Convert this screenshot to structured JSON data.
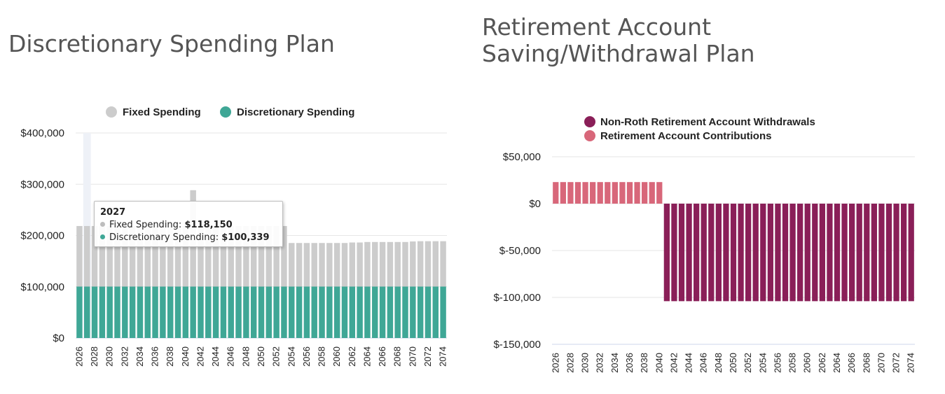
{
  "colors": {
    "fixed": "#cccccc",
    "discretionary": "#3fa796",
    "withdrawals": "#8a1f58",
    "contributions": "#d8677a",
    "grid": "#e6e6e6",
    "axis": "#ccd6eb"
  },
  "left": {
    "title": "Discretionary Spending Plan",
    "tooltip": {
      "year": "2027",
      "rows": [
        {
          "label": "Fixed Spending:",
          "value": "$118,150",
          "color": "#bdbdbd"
        },
        {
          "label": "Discretionary Spending:",
          "value": "$100,339",
          "color": "#3fa796"
        }
      ]
    }
  },
  "right": {
    "title": "Retirement Account Saving/Withdrawal Plan"
  },
  "chart_data": [
    {
      "type": "bar",
      "stacked": true,
      "title": "Discretionary Spending Plan",
      "x": [
        2026,
        2027,
        2028,
        2029,
        2030,
        2031,
        2032,
        2033,
        2034,
        2035,
        2036,
        2037,
        2038,
        2039,
        2040,
        2041,
        2042,
        2043,
        2044,
        2045,
        2046,
        2047,
        2048,
        2049,
        2050,
        2051,
        2052,
        2053,
        2054,
        2055,
        2056,
        2057,
        2058,
        2059,
        2060,
        2061,
        2062,
        2063,
        2064,
        2065,
        2066,
        2067,
        2068,
        2069,
        2070,
        2071,
        2072,
        2073,
        2074
      ],
      "xtick_labels": [
        "2026",
        "2028",
        "2030",
        "2032",
        "2034",
        "2036",
        "2038",
        "2040",
        "2042",
        "2044",
        "2046",
        "2048",
        "2050",
        "2052",
        "2054",
        "2056",
        "2058",
        "2060",
        "2062",
        "2064",
        "2066",
        "2068",
        "2070",
        "2072",
        "2074"
      ],
      "series": [
        {
          "name": "Fixed Spending",
          "values": [
            118150,
            118150,
            118150,
            118150,
            118150,
            118150,
            118150,
            118150,
            118150,
            118150,
            118150,
            118150,
            118150,
            118150,
            118150,
            188000,
            118150,
            118150,
            118150,
            118150,
            118150,
            118150,
            118150,
            118150,
            118150,
            118150,
            118150,
            118150,
            85000,
            85000,
            85000,
            85000,
            85000,
            85000,
            85000,
            85000,
            86000,
            86000,
            87000,
            87000,
            87000,
            87000,
            87000,
            87000,
            88000,
            88500,
            88500,
            88500,
            88500
          ]
        },
        {
          "name": "Discretionary Spending",
          "values": [
            100339,
            100339,
            100339,
            100339,
            100339,
            100339,
            100339,
            100339,
            100339,
            100339,
            100339,
            100339,
            100339,
            100339,
            100339,
            100339,
            100339,
            100339,
            100339,
            100339,
            100339,
            100339,
            100339,
            100339,
            100339,
            100339,
            100339,
            100339,
            100339,
            100339,
            100339,
            100339,
            100339,
            100339,
            100339,
            100339,
            100339,
            100339,
            100339,
            100339,
            100339,
            100339,
            100339,
            100339,
            100339,
            100339,
            100339,
            100339,
            100339
          ]
        }
      ],
      "ylim": [
        0,
        400000
      ],
      "yticks": [
        0,
        100000,
        200000,
        300000,
        400000
      ],
      "ytick_labels": [
        "$0",
        "$100,000",
        "$200,000",
        "$300,000",
        "$400,000"
      ],
      "highlight_year": 2027,
      "legend": "top-center",
      "grid": true
    },
    {
      "type": "bar",
      "title": "Retirement Account Saving/Withdrawal Plan",
      "x": [
        2026,
        2027,
        2028,
        2029,
        2030,
        2031,
        2032,
        2033,
        2034,
        2035,
        2036,
        2037,
        2038,
        2039,
        2040,
        2041,
        2042,
        2043,
        2044,
        2045,
        2046,
        2047,
        2048,
        2049,
        2050,
        2051,
        2052,
        2053,
        2054,
        2055,
        2056,
        2057,
        2058,
        2059,
        2060,
        2061,
        2062,
        2063,
        2064,
        2065,
        2066,
        2067,
        2068,
        2069,
        2070,
        2071,
        2072,
        2073,
        2074
      ],
      "xtick_labels": [
        "2026",
        "2028",
        "2030",
        "2032",
        "2034",
        "2036",
        "2038",
        "2040",
        "2042",
        "2044",
        "2046",
        "2048",
        "2050",
        "2052",
        "2054",
        "2056",
        "2058",
        "2060",
        "2062",
        "2064",
        "2066",
        "2068",
        "2070",
        "2072",
        "2074"
      ],
      "series": [
        {
          "name": "Non-Roth Retirement Account Withdrawals",
          "values": [
            0,
            0,
            0,
            0,
            0,
            0,
            0,
            0,
            0,
            0,
            0,
            0,
            0,
            0,
            0,
            -104000,
            -104000,
            -104000,
            -104000,
            -104000,
            -104000,
            -104000,
            -104000,
            -104000,
            -104000,
            -104000,
            -104000,
            -104000,
            -104000,
            -104000,
            -104000,
            -104000,
            -104000,
            -104000,
            -104000,
            -104000,
            -104000,
            -104000,
            -104000,
            -104000,
            -104000,
            -104000,
            -104000,
            -104000,
            -104000,
            -104000,
            -104000,
            -104000,
            -104000
          ]
        },
        {
          "name": "Retirement Account Contributions",
          "values": [
            23000,
            23000,
            23000,
            23000,
            23000,
            23000,
            23000,
            23000,
            23000,
            23000,
            23000,
            23000,
            23000,
            23000,
            23000,
            0,
            0,
            0,
            0,
            0,
            0,
            0,
            0,
            0,
            0,
            0,
            0,
            0,
            0,
            0,
            0,
            0,
            0,
            0,
            0,
            0,
            0,
            0,
            0,
            0,
            0,
            0,
            0,
            0,
            0,
            0,
            0,
            0,
            0
          ]
        }
      ],
      "ylim": [
        -150000,
        50000
      ],
      "yticks": [
        -150000,
        -100000,
        -50000,
        0,
        50000
      ],
      "ytick_labels": [
        "$-150,000",
        "$-100,000",
        "$-50,000",
        "$0",
        "$50,000"
      ],
      "legend": "top-left",
      "grid": true
    }
  ]
}
